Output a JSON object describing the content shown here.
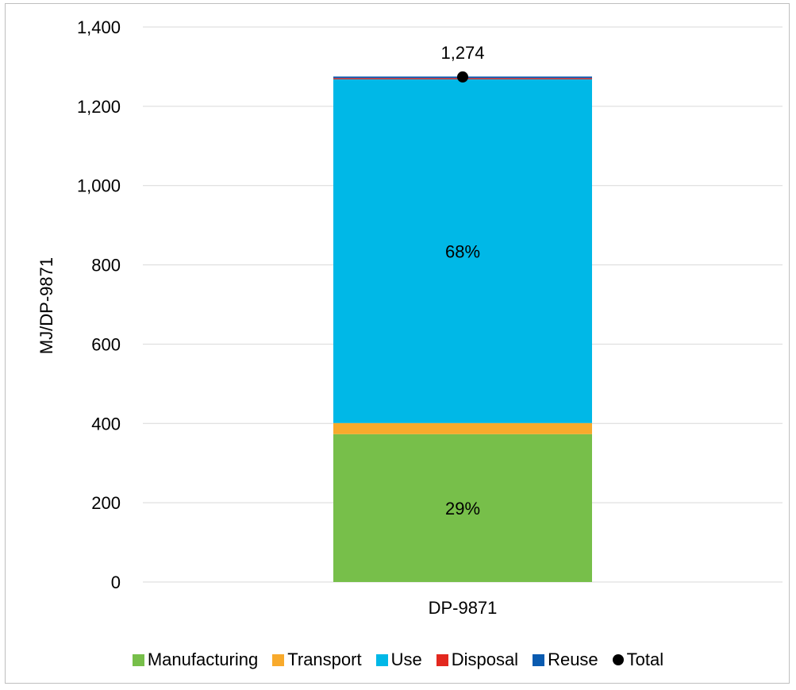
{
  "chart_data": {
    "type": "bar",
    "stacked": true,
    "categories": [
      "DP-9871"
    ],
    "series": [
      {
        "name": "Manufacturing",
        "values": [
          373
        ],
        "color": "#77bf4a"
      },
      {
        "name": "Transport",
        "values": [
          28
        ],
        "color": "#f8aa2c"
      },
      {
        "name": "Use",
        "values": [
          867
        ],
        "color": "#00b8e7"
      },
      {
        "name": "Disposal",
        "values": [
          3
        ],
        "color": "#e3281f"
      },
      {
        "name": "Reuse",
        "values": [
          4
        ],
        "color": "#0a5bb0"
      }
    ],
    "total": {
      "name": "Total",
      "values": [
        1274
      ],
      "label": "1,274",
      "color": "#000000"
    },
    "segment_labels": [
      {
        "series": "Manufacturing",
        "text": "29%"
      },
      {
        "series": "Use",
        "text": "68%"
      }
    ],
    "ylabel": "MJ/DP-9871",
    "xlabel": "",
    "ylim": [
      0,
      1400
    ],
    "yticks": [
      0,
      200,
      400,
      600,
      800,
      1000,
      1200,
      1400
    ],
    "ytick_labels": [
      "0",
      "200",
      "400",
      "600",
      "800",
      "1,000",
      "1,200",
      "1,400"
    ],
    "grid": true,
    "legend_position": "bottom"
  }
}
